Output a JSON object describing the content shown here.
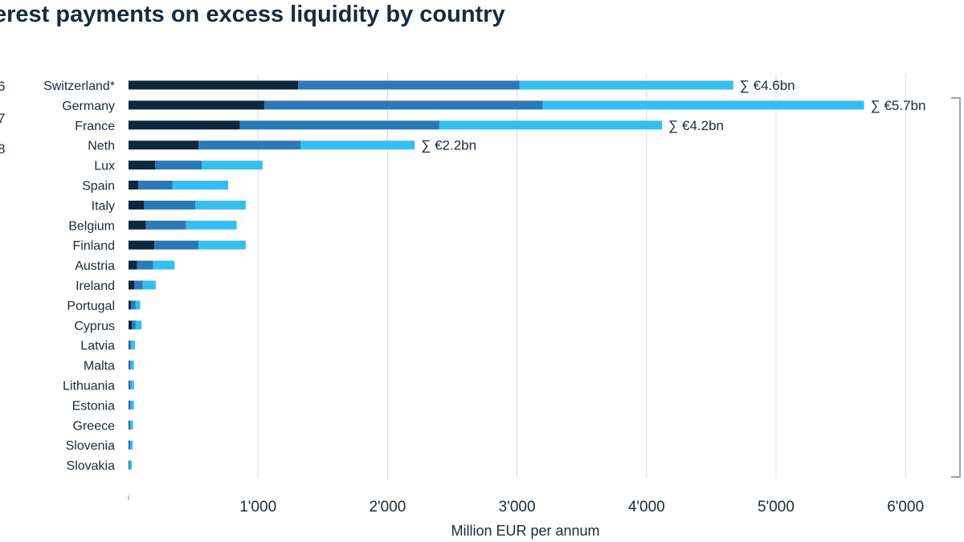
{
  "header": {
    "title": "erest payments on excess liquidity by country",
    "side_digits": [
      "6",
      "7",
      "8"
    ]
  },
  "chart_data": {
    "type": "bar",
    "orientation": "horizontal",
    "stacked": true,
    "title": "erest payments on excess liquidity by country",
    "xlabel": "Million EUR per annum",
    "ylabel": "",
    "xlim": [
      0,
      6000
    ],
    "x_ticks": [
      "",
      "1'000",
      "2'000",
      "3'000",
      "4'000",
      "5'000",
      "6'000"
    ],
    "x_tick_values": [
      0,
      1000,
      2000,
      3000,
      4000,
      5000,
      6000
    ],
    "grid": "vertical",
    "categories": [
      "Switzerland*",
      "Germany",
      "France",
      "Neth",
      "Lux",
      "Spain",
      "Italy",
      "Belgium",
      "Finland",
      "Austria",
      "Ireland",
      "Portugal",
      "Cyprus",
      "Latvia",
      "Malta",
      "Lithuania",
      "Estonia",
      "Greece",
      "Slovenia",
      "Slovakia"
    ],
    "series": [
      {
        "color": "#0d2840",
        "values": [
          1310,
          1050,
          860,
          540,
          205,
          75,
          120,
          135,
          200,
          65,
          45,
          20,
          25,
          5,
          5,
          5,
          5,
          3,
          3,
          2
        ]
      },
      {
        "color": "#2b7ab8",
        "values": [
          1710,
          2150,
          1540,
          790,
          360,
          265,
          395,
          310,
          340,
          125,
          65,
          35,
          30,
          15,
          12,
          12,
          12,
          10,
          10,
          8
        ]
      },
      {
        "color": "#35bff0",
        "values": [
          1650,
          2480,
          1720,
          880,
          470,
          430,
          390,
          390,
          365,
          165,
          100,
          35,
          45,
          30,
          25,
          25,
          25,
          22,
          20,
          15
        ]
      }
    ],
    "annotations": [
      {
        "category": "Switzerland*",
        "text": "∑ €4.6bn"
      },
      {
        "category": "Germany",
        "text": "∑ €5.7bn"
      },
      {
        "category": "France",
        "text": "∑ €4.2bn"
      },
      {
        "category": "Neth",
        "text": "∑ €2.2bn"
      }
    ],
    "colors": {
      "grid": "#d9d9d9",
      "axis": "#9aa1a8",
      "bracket": "#7a8088"
    }
  }
}
